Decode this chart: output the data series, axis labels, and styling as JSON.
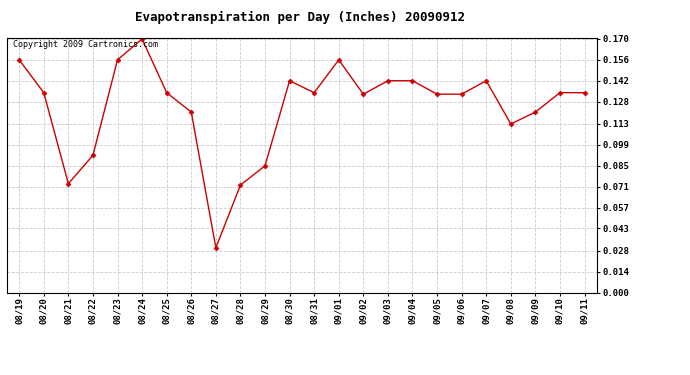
{
  "title": "Evapotranspiration per Day (Inches) 20090912",
  "copyright": "Copyright 2009 Cartronics.com",
  "x_labels": [
    "08/19",
    "08/20",
    "08/21",
    "08/22",
    "08/23",
    "08/24",
    "08/25",
    "08/26",
    "08/27",
    "08/28",
    "08/29",
    "08/30",
    "08/31",
    "09/01",
    "09/02",
    "09/03",
    "09/04",
    "09/05",
    "09/06",
    "09/07",
    "09/08",
    "09/09",
    "09/10",
    "09/11"
  ],
  "y_values": [
    0.156,
    0.134,
    0.073,
    0.092,
    0.156,
    0.17,
    0.134,
    0.121,
    0.03,
    0.072,
    0.085,
    0.142,
    0.134,
    0.156,
    0.133,
    0.142,
    0.142,
    0.133,
    0.133,
    0.142,
    0.113,
    0.121,
    0.134,
    0.134
  ],
  "y_min": 0.0,
  "y_max": 0.17,
  "y_ticks": [
    0.0,
    0.014,
    0.028,
    0.043,
    0.057,
    0.071,
    0.085,
    0.099,
    0.113,
    0.128,
    0.142,
    0.156,
    0.17
  ],
  "line_color": "#cc0000",
  "marker": "D",
  "marker_size": 2.5,
  "background_color": "#ffffff",
  "grid_color": "#cccccc",
  "title_fontsize": 9,
  "tick_fontsize": 6.5,
  "copyright_fontsize": 6
}
